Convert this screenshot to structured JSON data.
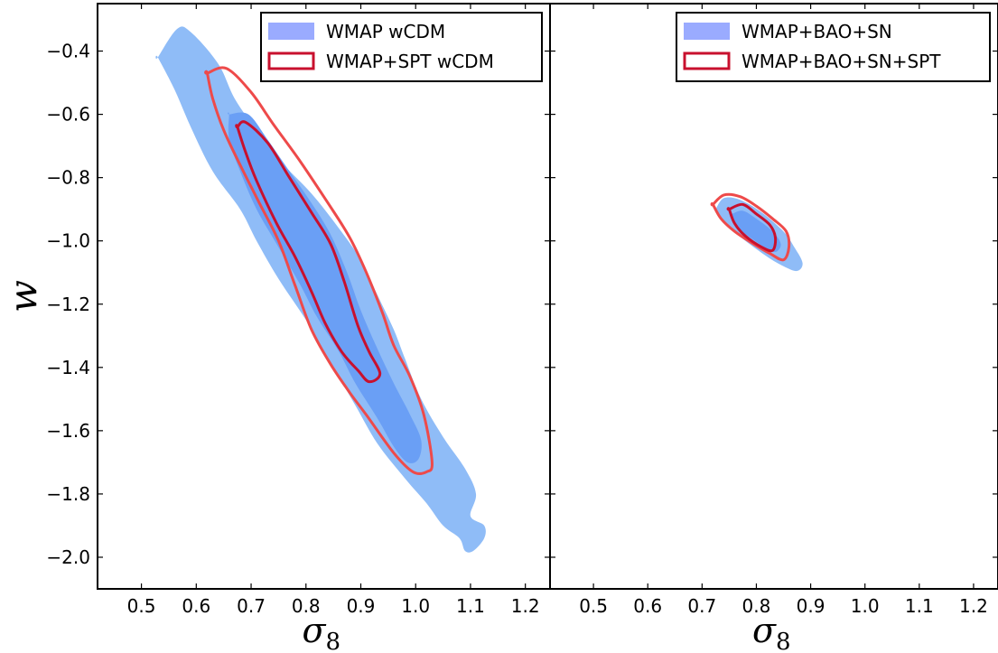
{
  "chart_data": [
    {
      "type": "contour",
      "panel": "left",
      "xlabel": "σ8",
      "ylabel": "w",
      "xlim": [
        0.42,
        1.245
      ],
      "ylim": [
        -2.1,
        -0.25
      ],
      "xticks": [
        0.5,
        0.6,
        0.7,
        0.8,
        0.9,
        1.0,
        1.1,
        1.2
      ],
      "xtick_labels": [
        "0.5",
        "0.6",
        "0.7",
        "0.8",
        "0.9",
        "1.0",
        "1.1",
        "1.2"
      ],
      "yticks": [
        -0.4,
        -0.6,
        -0.8,
        -1.0,
        -1.2,
        -1.4,
        -1.6,
        -1.8,
        -2.0
      ],
      "ytick_labels": [
        "−0.4",
        "−0.6",
        "−0.8",
        "−1.0",
        "−1.2",
        "−1.4",
        "−1.6",
        "−1.8",
        "−2.0"
      ],
      "legend": {
        "position": "top-right",
        "entries": [
          {
            "label": "WMAP wCDM",
            "style": "filled",
            "color": "#9aabff"
          },
          {
            "label": "WMAP+SPT wCDM",
            "style": "outline",
            "color": "#c8102e"
          }
        ]
      },
      "series": [
        {
          "name": "WMAP wCDM",
          "style": "filled",
          "levels": [
            {
              "level": "95%",
              "color": "#8fbcf7",
              "points": [
                [
                  0.53,
                  -0.42
                ],
                [
                  0.565,
                  -0.33
                ],
                [
                  0.59,
                  -0.34
                ],
                [
                  0.64,
                  -0.44
                ],
                [
                  0.67,
                  -0.55
                ],
                [
                  0.71,
                  -0.65
                ],
                [
                  0.76,
                  -0.76
                ],
                [
                  0.81,
                  -0.85
                ],
                [
                  0.86,
                  -0.96
                ],
                [
                  0.9,
                  -1.06
                ],
                [
                  0.93,
                  -1.17
                ],
                [
                  0.96,
                  -1.28
                ],
                [
                  0.98,
                  -1.37
                ],
                [
                  1.01,
                  -1.5
                ],
                [
                  1.05,
                  -1.62
                ],
                [
                  1.09,
                  -1.72
                ],
                [
                  1.11,
                  -1.8
                ],
                [
                  1.1,
                  -1.87
                ],
                [
                  1.125,
                  -1.9
                ],
                [
                  1.125,
                  -1.94
                ],
                [
                  1.105,
                  -1.98
                ],
                [
                  1.09,
                  -1.98
                ],
                [
                  1.08,
                  -1.94
                ],
                [
                  1.05,
                  -1.9
                ],
                [
                  1.02,
                  -1.83
                ],
                [
                  0.98,
                  -1.75
                ],
                [
                  0.93,
                  -1.64
                ],
                [
                  0.89,
                  -1.52
                ],
                [
                  0.84,
                  -1.37
                ],
                [
                  0.8,
                  -1.25
                ],
                [
                  0.75,
                  -1.12
                ],
                [
                  0.71,
                  -1.0
                ],
                [
                  0.68,
                  -0.9
                ],
                [
                  0.63,
                  -0.78
                ],
                [
                  0.59,
                  -0.64
                ],
                [
                  0.56,
                  -0.52
                ],
                [
                  0.53,
                  -0.42
                ]
              ]
            },
            {
              "level": "68%",
              "color": "#6a9ff5",
              "points": [
                [
                  0.66,
                  -0.6
                ],
                [
                  0.695,
                  -0.6
                ],
                [
                  0.73,
                  -0.68
                ],
                [
                  0.77,
                  -0.78
                ],
                [
                  0.81,
                  -0.88
                ],
                [
                  0.845,
                  -0.98
                ],
                [
                  0.875,
                  -1.1
                ],
                [
                  0.9,
                  -1.22
                ],
                [
                  0.93,
                  -1.34
                ],
                [
                  0.96,
                  -1.45
                ],
                [
                  0.99,
                  -1.55
                ],
                [
                  1.01,
                  -1.63
                ],
                [
                  1.005,
                  -1.69
                ],
                [
                  0.985,
                  -1.7
                ],
                [
                  0.96,
                  -1.65
                ],
                [
                  0.93,
                  -1.56
                ],
                [
                  0.89,
                  -1.45
                ],
                [
                  0.86,
                  -1.35
                ],
                [
                  0.82,
                  -1.24
                ],
                [
                  0.79,
                  -1.14
                ],
                [
                  0.75,
                  -1.02
                ],
                [
                  0.71,
                  -0.9
                ],
                [
                  0.68,
                  -0.78
                ],
                [
                  0.66,
                  -0.68
                ],
                [
                  0.66,
                  -0.6
                ]
              ]
            }
          ]
        },
        {
          "name": "WMAP+SPT wCDM",
          "style": "outline",
          "levels": [
            {
              "level": "95%",
              "color": "#ee4a4a",
              "points": [
                [
                  0.62,
                  -0.47
                ],
                [
                  0.655,
                  -0.455
                ],
                [
                  0.7,
                  -0.53
                ],
                [
                  0.74,
                  -0.63
                ],
                [
                  0.79,
                  -0.75
                ],
                [
                  0.84,
                  -0.88
                ],
                [
                  0.88,
                  -0.99
                ],
                [
                  0.91,
                  -1.1
                ],
                [
                  0.94,
                  -1.23
                ],
                [
                  0.96,
                  -1.33
                ],
                [
                  0.99,
                  -1.43
                ],
                [
                  1.015,
                  -1.55
                ],
                [
                  1.03,
                  -1.7
                ],
                [
                  1.02,
                  -1.73
                ],
                [
                  0.995,
                  -1.73
                ],
                [
                  0.96,
                  -1.67
                ],
                [
                  0.91,
                  -1.55
                ],
                [
                  0.88,
                  -1.48
                ],
                [
                  0.845,
                  -1.39
                ],
                [
                  0.81,
                  -1.28
                ],
                [
                  0.78,
                  -1.14
                ],
                [
                  0.75,
                  -1.0
                ],
                [
                  0.715,
                  -0.88
                ],
                [
                  0.68,
                  -0.76
                ],
                [
                  0.65,
                  -0.65
                ],
                [
                  0.63,
                  -0.55
                ],
                [
                  0.62,
                  -0.47
                ]
              ]
            },
            {
              "level": "68%",
              "color": "#c8102e",
              "points": [
                [
                  0.675,
                  -0.64
                ],
                [
                  0.69,
                  -0.625
                ],
                [
                  0.73,
                  -0.69
                ],
                [
                  0.77,
                  -0.8
                ],
                [
                  0.81,
                  -0.91
                ],
                [
                  0.845,
                  -1.01
                ],
                [
                  0.87,
                  -1.13
                ],
                [
                  0.895,
                  -1.27
                ],
                [
                  0.915,
                  -1.35
                ],
                [
                  0.935,
                  -1.42
                ],
                [
                  0.915,
                  -1.445
                ],
                [
                  0.895,
                  -1.41
                ],
                [
                  0.865,
                  -1.35
                ],
                [
                  0.835,
                  -1.26
                ],
                [
                  0.81,
                  -1.16
                ],
                [
                  0.78,
                  -1.05
                ],
                [
                  0.745,
                  -0.94
                ],
                [
                  0.71,
                  -0.81
                ],
                [
                  0.69,
                  -0.72
                ],
                [
                  0.675,
                  -0.64
                ]
              ]
            }
          ]
        }
      ]
    },
    {
      "type": "contour",
      "panel": "right",
      "xlabel": "σ8",
      "ylabel": "",
      "xlim": [
        0.42,
        1.245
      ],
      "ylim": [
        -2.1,
        -0.25
      ],
      "xticks": [
        0.5,
        0.6,
        0.7,
        0.8,
        0.9,
        1.0,
        1.1,
        1.2
      ],
      "xtick_labels": [
        "0.5",
        "0.6",
        "0.7",
        "0.8",
        "0.9",
        "1.0",
        "1.1",
        "1.2"
      ],
      "yticks": [
        -0.4,
        -0.6,
        -0.8,
        -1.0,
        -1.2,
        -1.4,
        -1.6,
        -1.8,
        -2.0
      ],
      "legend": {
        "position": "top-right",
        "entries": [
          {
            "label": "WMAP+BAO+SN",
            "style": "filled",
            "color": "#9aabff"
          },
          {
            "label": "WMAP+BAO+SN+SPT",
            "style": "outline",
            "color": "#c8102e"
          }
        ]
      },
      "series": [
        {
          "name": "WMAP+BAO+SN",
          "style": "filled",
          "levels": [
            {
              "level": "95%",
              "color": "#8fbcf7",
              "points": [
                [
                  0.725,
                  -0.9
                ],
                [
                  0.74,
                  -0.865
                ],
                [
                  0.77,
                  -0.87
                ],
                [
                  0.81,
                  -0.91
                ],
                [
                  0.85,
                  -0.97
                ],
                [
                  0.87,
                  -1.02
                ],
                [
                  0.885,
                  -1.07
                ],
                [
                  0.875,
                  -1.095
                ],
                [
                  0.85,
                  -1.08
                ],
                [
                  0.82,
                  -1.05
                ],
                [
                  0.78,
                  -1.0
                ],
                [
                  0.745,
                  -0.95
                ],
                [
                  0.725,
                  -0.9
                ]
              ]
            },
            {
              "level": "68%",
              "color": "#6a9ff5",
              "points": [
                [
                  0.755,
                  -0.915
                ],
                [
                  0.775,
                  -0.905
                ],
                [
                  0.8,
                  -0.93
                ],
                [
                  0.83,
                  -0.97
                ],
                [
                  0.845,
                  -1.01
                ],
                [
                  0.835,
                  -1.035
                ],
                [
                  0.815,
                  -1.02
                ],
                [
                  0.785,
                  -0.985
                ],
                [
                  0.76,
                  -0.95
                ],
                [
                  0.755,
                  -0.915
                ]
              ]
            }
          ]
        },
        {
          "name": "WMAP+BAO+SN+SPT",
          "style": "outline",
          "levels": [
            {
              "level": "95%",
              "color": "#ee4a4a",
              "points": [
                [
                  0.72,
                  -0.885
                ],
                [
                  0.74,
                  -0.855
                ],
                [
                  0.77,
                  -0.86
                ],
                [
                  0.8,
                  -0.89
                ],
                [
                  0.83,
                  -0.93
                ],
                [
                  0.855,
                  -0.97
                ],
                [
                  0.86,
                  -1.02
                ],
                [
                  0.85,
                  -1.06
                ],
                [
                  0.825,
                  -1.04
                ],
                [
                  0.795,
                  -1.01
                ],
                [
                  0.76,
                  -0.97
                ],
                [
                  0.735,
                  -0.93
                ],
                [
                  0.72,
                  -0.885
                ]
              ]
            },
            {
              "level": "68%",
              "color": "#c8102e",
              "points": [
                [
                  0.75,
                  -0.9
                ],
                [
                  0.775,
                  -0.885
                ],
                [
                  0.8,
                  -0.915
                ],
                [
                  0.825,
                  -0.95
                ],
                [
                  0.835,
                  -0.99
                ],
                [
                  0.83,
                  -1.03
                ],
                [
                  0.81,
                  -1.02
                ],
                [
                  0.78,
                  -0.985
                ],
                [
                  0.76,
                  -0.945
                ],
                [
                  0.75,
                  -0.9
                ]
              ]
            }
          ]
        }
      ]
    }
  ]
}
